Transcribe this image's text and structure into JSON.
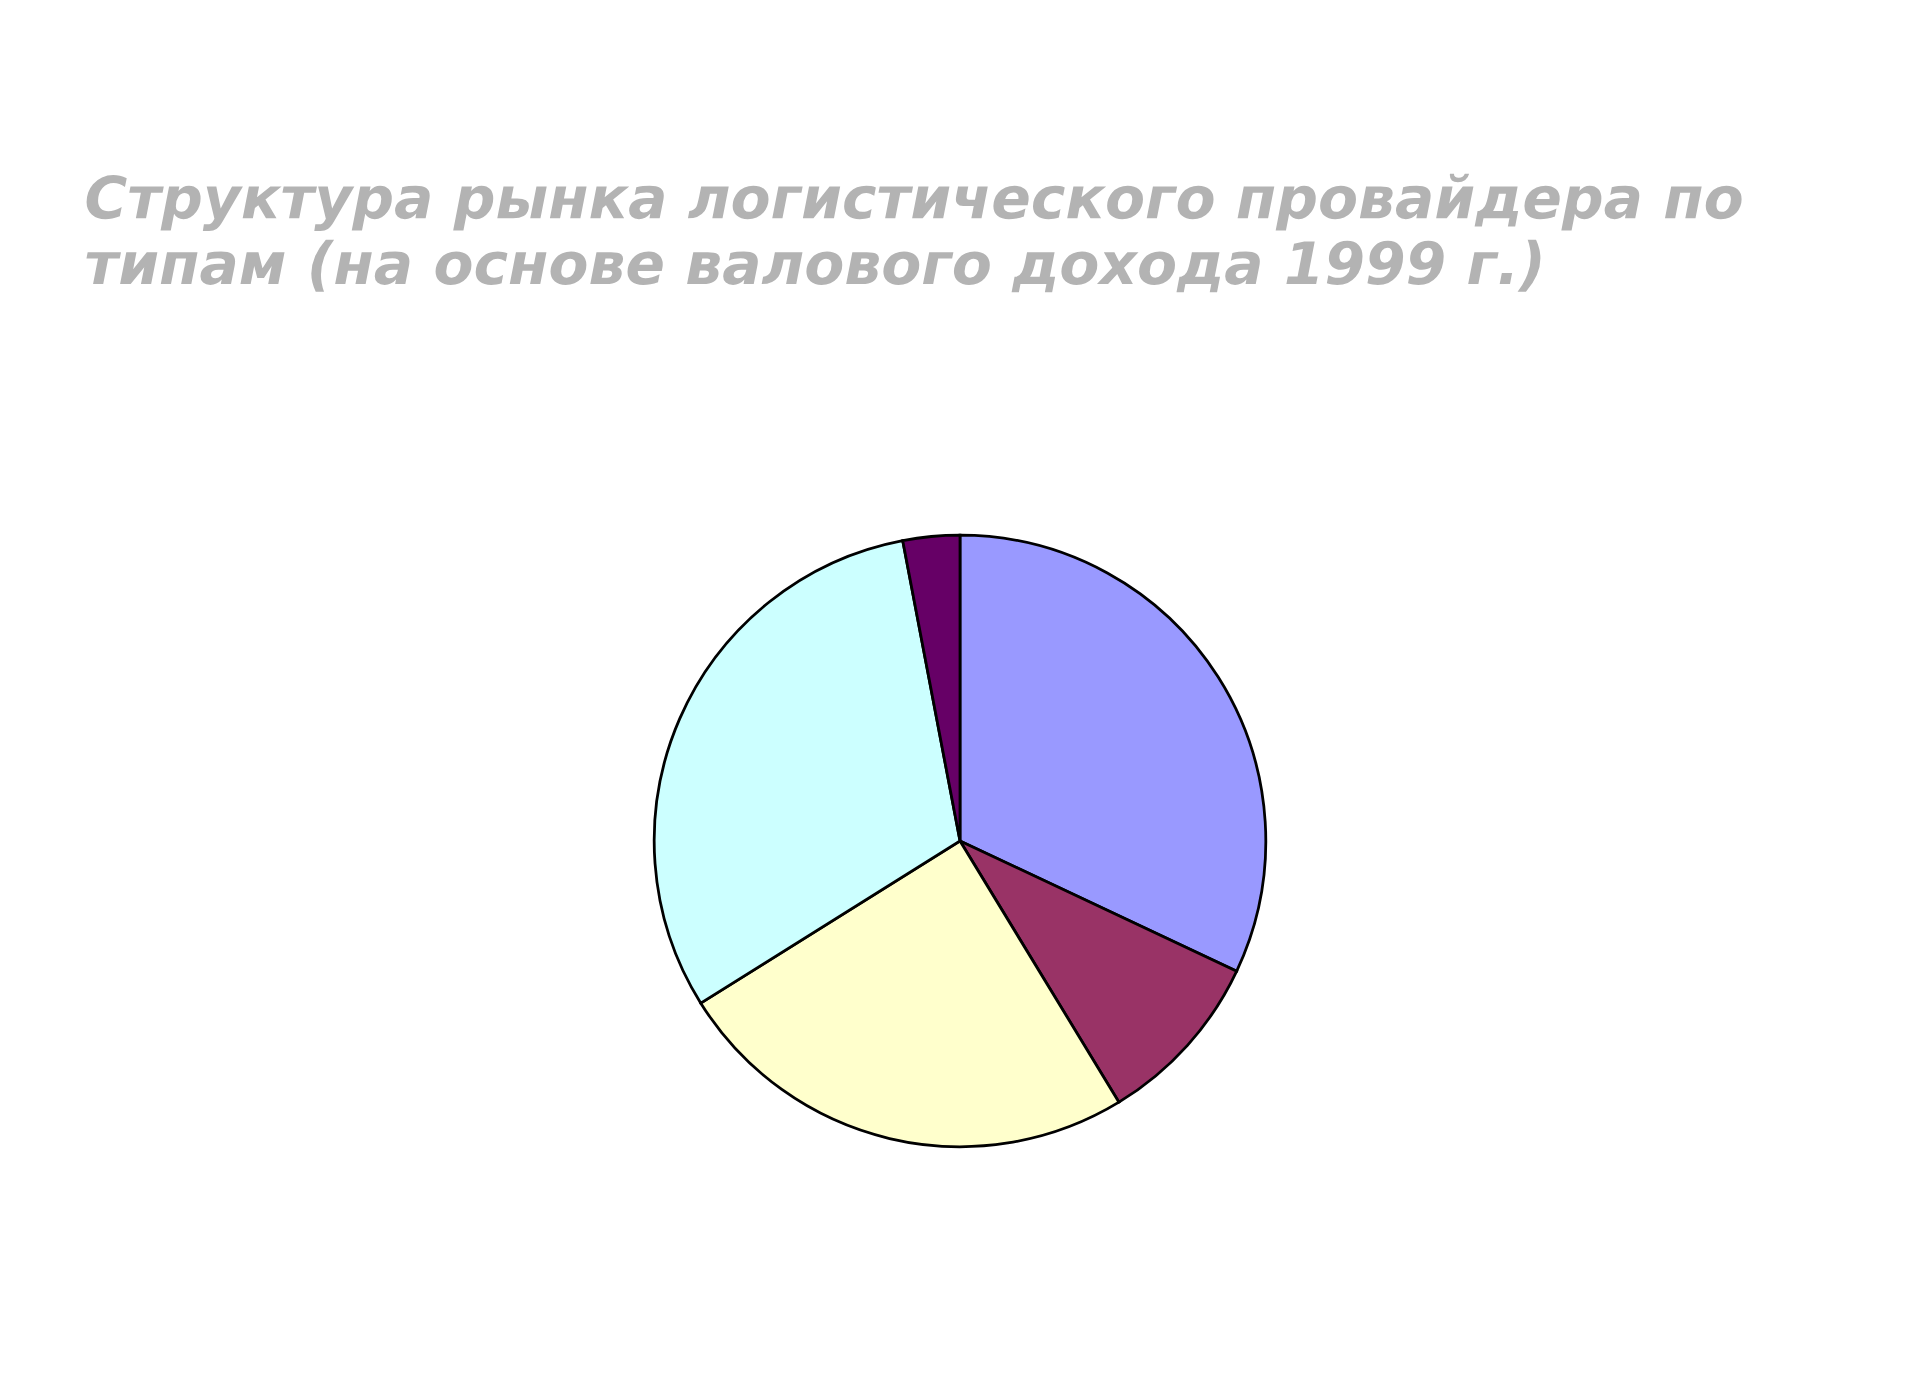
{
  "chart_data": {
    "type": "pie",
    "title": "Структура рынка логистического провайдера по типам (на основе валового дохода 1999 г.)",
    "categories": [
      null,
      null,
      null,
      null,
      null
    ],
    "values": [
      32.0,
      9.3,
      24.8,
      30.9,
      3.0
    ],
    "colors": [
      "#9999ff",
      "#993366",
      "#ffffcc",
      "#ccffff",
      "#660066"
    ]
  }
}
